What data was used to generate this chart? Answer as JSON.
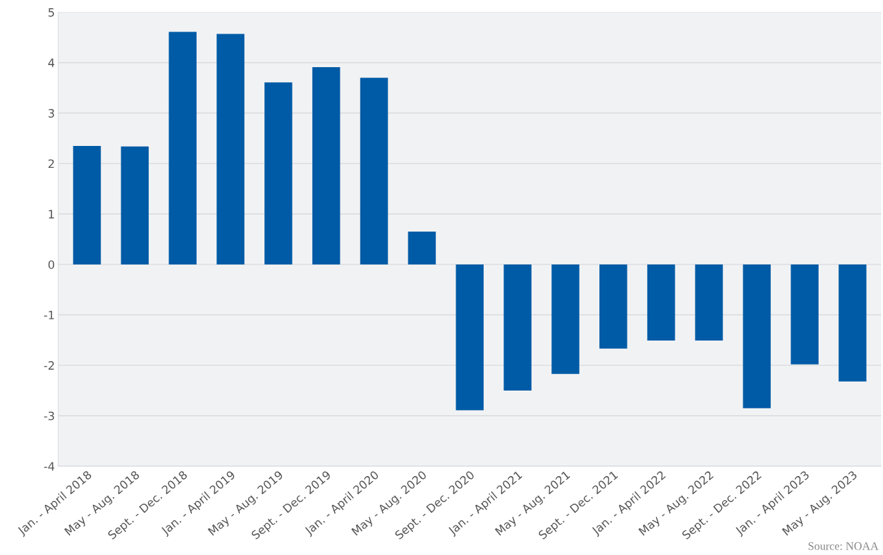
{
  "chart_data": {
    "type": "bar",
    "categories": [
      "Jan. - April 2018",
      "May - Aug. 2018",
      "Sept. - Dec. 2018",
      "Jan. - April 2019",
      "May - Aug. 2019",
      "Sept. - Dec. 2019",
      "Jan. - April 2020",
      "May - Aug. 2020",
      "Sept. - Dec. 2020",
      "Jan. - April 2021",
      "May - Aug. 2021",
      "Sept. - Dec. 2021",
      "Jan. - April 2022",
      "May - Aug. 2022",
      "Sept. - Dec. 2022",
      "Jan. - April 2023",
      "May - Aug. 2023"
    ],
    "values": [
      2.35,
      2.34,
      4.61,
      4.57,
      3.61,
      3.91,
      3.7,
      0.65,
      -2.89,
      -2.5,
      -2.17,
      -1.67,
      -1.51,
      -1.51,
      -2.85,
      -1.98,
      -2.32
    ],
    "color": "#005ba6",
    "ylim": [
      -4,
      5
    ],
    "yticks": [
      -4,
      -3,
      -2,
      -1,
      0,
      1,
      2,
      3,
      4,
      5
    ],
    "grid": "y",
    "annotations": [
      "Source: NOAA"
    ]
  }
}
